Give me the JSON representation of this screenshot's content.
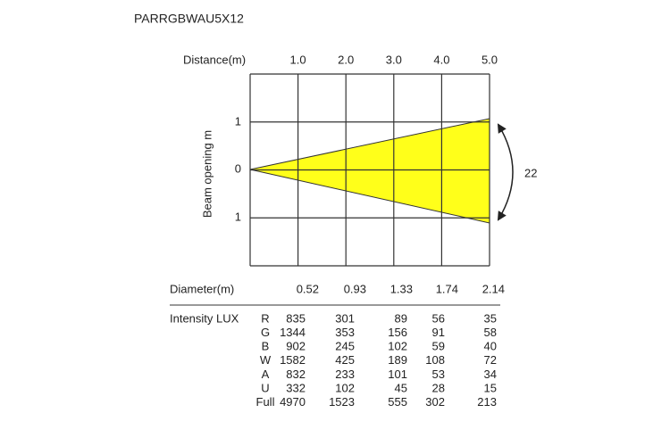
{
  "title": "PARRGBWAU5X12",
  "distance": {
    "label": "Distance(m)",
    "values": [
      "1.0",
      "2.0",
      "3.0",
      "4.0",
      "5.0"
    ]
  },
  "beam_opening": {
    "label": "Beam opening   m",
    "ticks": [
      "1",
      "0",
      "1"
    ],
    "angle": "22"
  },
  "diameter": {
    "label": "Diameter(m)",
    "values": [
      "0.52",
      "0.93",
      "1.33",
      "1.74",
      "2.14"
    ]
  },
  "intensity": {
    "label": "Intensity LUX",
    "rows": [
      {
        "channel": "R",
        "values": [
          835,
          301,
          89,
          56,
          35
        ]
      },
      {
        "channel": "G",
        "values": [
          1344,
          353,
          156,
          91,
          58
        ]
      },
      {
        "channel": "B",
        "values": [
          902,
          245,
          102,
          59,
          40
        ]
      },
      {
        "channel": "W",
        "values": [
          1582,
          425,
          189,
          108,
          72
        ]
      },
      {
        "channel": "A",
        "values": [
          832,
          233,
          101,
          53,
          34
        ]
      },
      {
        "channel": "U",
        "values": [
          332,
          102,
          45,
          28,
          15
        ]
      },
      {
        "channel": "Full",
        "values": [
          4970,
          1523,
          555,
          302,
          213
        ]
      }
    ]
  }
}
